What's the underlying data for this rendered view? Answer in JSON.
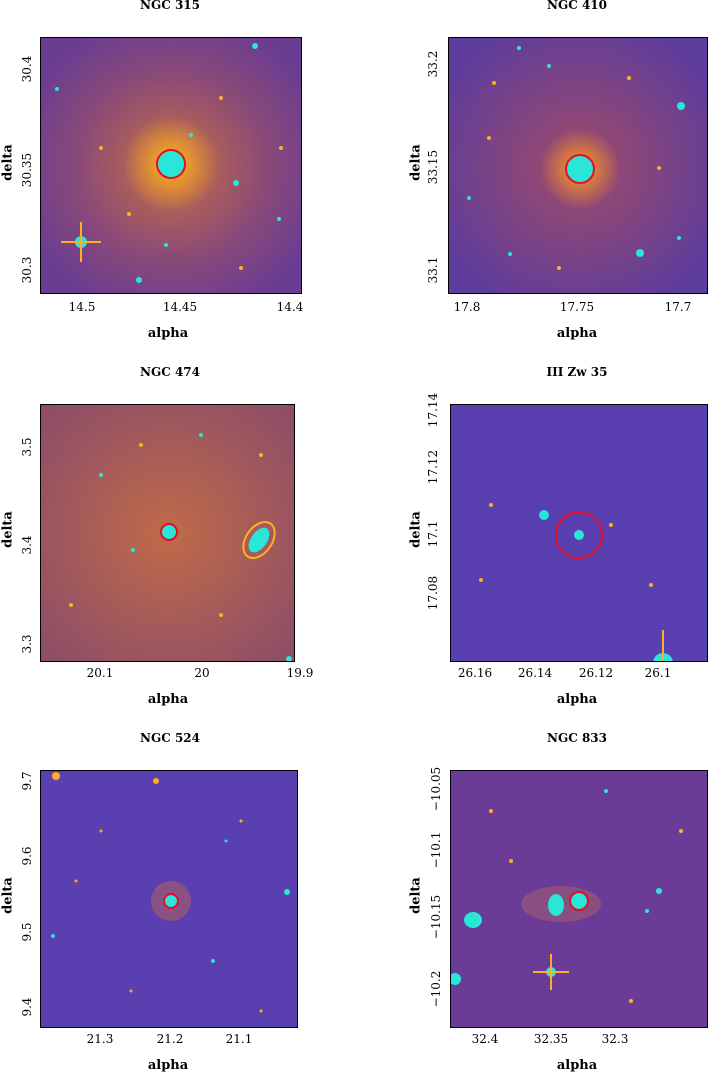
{
  "panels": [
    {
      "title": "NGC 315",
      "xlabel": "alpha",
      "ylabel": "delta",
      "xticks": [
        "14.5",
        "14.45",
        "14.4"
      ],
      "yticks": [
        "30.4",
        "30.35",
        "30.3"
      ]
    },
    {
      "title": "NGC 410",
      "xlabel": "alpha",
      "ylabel": "delta",
      "xticks": [
        "17.8",
        "17.75",
        "17.7"
      ],
      "yticks": [
        "33.2",
        "33.15",
        "33.1"
      ]
    },
    {
      "title": "NGC 474",
      "xlabel": "alpha",
      "ylabel": "delta",
      "xticks": [
        "20.1",
        "20",
        "19.9"
      ],
      "yticks": [
        "3.5",
        "3.4",
        "3.3"
      ]
    },
    {
      "title": "III Zw 35",
      "xlabel": "alpha",
      "ylabel": "delta",
      "xticks": [
        "26.16",
        "26.14",
        "26.12",
        "26.1"
      ],
      "yticks": [
        "17.14",
        "17.12",
        "17.1",
        "17.08"
      ]
    },
    {
      "title": "NGC 524",
      "xlabel": "alpha",
      "ylabel": "delta",
      "xticks": [
        "21.3",
        "21.2",
        "21.1"
      ],
      "yticks": [
        "9.7",
        "9.6",
        "9.5",
        "9.4"
      ]
    },
    {
      "title": "NGC 833",
      "xlabel": "alpha",
      "ylabel": "delta",
      "xticks": [
        "32.4",
        "32.35",
        "32.3"
      ],
      "yticks": [
        "−10.05",
        "−10.1",
        "−10.15",
        "−10.2"
      ]
    }
  ],
  "colors": {
    "sky_warm": "#b8604f",
    "sky_cool": "#5a3fb0",
    "star": "#29e6d8",
    "marker": "#e0102a"
  }
}
